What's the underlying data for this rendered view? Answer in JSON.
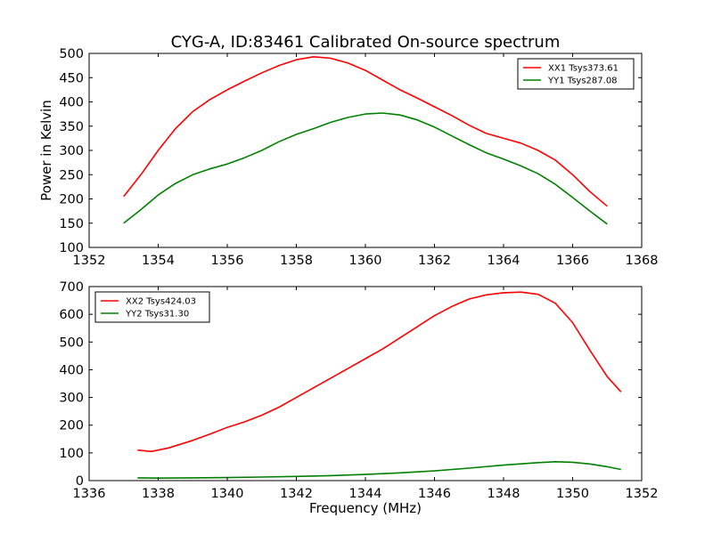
{
  "title": "CYG-A, ID:83461 Calibrated On-source spectrum",
  "chart_data": [
    {
      "type": "line",
      "ylabel": "Power in Kelvin",
      "xlabel": "",
      "xlim": [
        1352,
        1368
      ],
      "ylim": [
        100,
        500
      ],
      "xticks": [
        "1352",
        "1354",
        "1356",
        "1358",
        "1360",
        "1362",
        "1364",
        "1366",
        "1368"
      ],
      "yticks": [
        "100",
        "150",
        "200",
        "250",
        "300",
        "350",
        "400",
        "450",
        "500"
      ],
      "legend_position": "top-right",
      "series": [
        {
          "name": "XX1 Tsys373.61",
          "color": "#ff0000",
          "x": [
            1353.0,
            1353.5,
            1354.0,
            1354.5,
            1355.0,
            1355.5,
            1356.0,
            1356.5,
            1357.0,
            1357.5,
            1358.0,
            1358.5,
            1359.0,
            1359.5,
            1360.0,
            1360.5,
            1361.0,
            1361.5,
            1362.0,
            1362.5,
            1363.0,
            1363.5,
            1364.0,
            1364.5,
            1365.0,
            1365.5,
            1366.0,
            1366.5,
            1367.0
          ],
          "y": [
            205,
            250,
            300,
            345,
            380,
            405,
            425,
            443,
            460,
            475,
            487,
            493,
            490,
            480,
            465,
            445,
            425,
            408,
            390,
            372,
            352,
            335,
            325,
            315,
            300,
            280,
            250,
            215,
            185
          ]
        },
        {
          "name": "YY1 Tsys287.08",
          "color": "#008000",
          "x": [
            1353.0,
            1353.5,
            1354.0,
            1354.5,
            1355.0,
            1355.5,
            1356.0,
            1356.5,
            1357.0,
            1357.5,
            1358.0,
            1358.5,
            1359.0,
            1359.5,
            1360.0,
            1360.5,
            1361.0,
            1361.5,
            1362.0,
            1362.5,
            1363.0,
            1363.5,
            1364.0,
            1364.5,
            1365.0,
            1365.5,
            1366.0,
            1366.5,
            1367.0
          ],
          "y": [
            150,
            178,
            208,
            232,
            250,
            262,
            272,
            285,
            300,
            318,
            333,
            345,
            358,
            368,
            375,
            377,
            373,
            363,
            348,
            330,
            312,
            295,
            282,
            268,
            252,
            230,
            203,
            175,
            148
          ]
        }
      ]
    },
    {
      "type": "line",
      "ylabel": "",
      "xlabel": "Frequency (MHz)",
      "xlim": [
        1336,
        1352
      ],
      "ylim": [
        0,
        700
      ],
      "xticks": [
        "1336",
        "1338",
        "1340",
        "1342",
        "1344",
        "1346",
        "1348",
        "1350",
        "1352"
      ],
      "yticks": [
        "0",
        "100",
        "200",
        "300",
        "400",
        "500",
        "600",
        "700"
      ],
      "legend_position": "top-left",
      "series": [
        {
          "name": "XX2 Tsys424.03",
          "color": "#ff0000",
          "x": [
            1337.4,
            1337.8,
            1338.3,
            1339.0,
            1339.5,
            1340.0,
            1340.5,
            1341.0,
            1341.5,
            1342.0,
            1342.5,
            1343.0,
            1343.5,
            1344.0,
            1344.5,
            1345.0,
            1345.5,
            1346.0,
            1346.5,
            1347.0,
            1347.5,
            1348.0,
            1348.5,
            1349.0,
            1349.5,
            1350.0,
            1350.5,
            1351.0,
            1351.4
          ],
          "y": [
            110,
            105,
            118,
            145,
            168,
            192,
            212,
            236,
            265,
            300,
            335,
            370,
            405,
            440,
            475,
            515,
            555,
            595,
            628,
            655,
            670,
            678,
            680,
            672,
            640,
            570,
            470,
            375,
            320
          ]
        },
        {
          "name": "YY2 Tsys31.30",
          "color": "#008000",
          "x": [
            1337.4,
            1338.0,
            1339.0,
            1340.0,
            1341.0,
            1342.0,
            1343.0,
            1344.0,
            1345.0,
            1346.0,
            1347.0,
            1348.0,
            1349.0,
            1349.5,
            1350.0,
            1350.5,
            1351.0,
            1351.4
          ],
          "y": [
            10,
            9,
            10,
            11,
            13,
            15,
            18,
            22,
            28,
            35,
            45,
            56,
            65,
            68,
            66,
            60,
            50,
            40
          ]
        }
      ]
    }
  ]
}
